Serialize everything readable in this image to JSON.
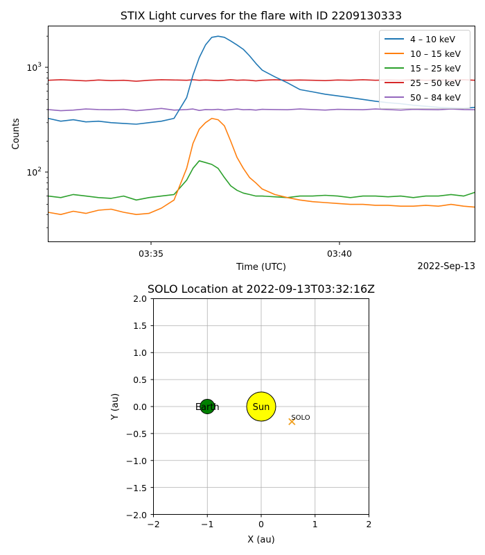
{
  "chart_data": [
    {
      "type": "line",
      "title": "STIX Light curves for the flare with ID 2209130333",
      "xlabel": "Time (UTC)",
      "ylabel": "Counts",
      "date_label": "2022-Sep-13",
      "yscale": "log",
      "ylim": [
        22,
        2500
      ],
      "xlim": [
        "03:32:16",
        "03:43:34"
      ],
      "x_ticks": [
        "03:35",
        "03:40"
      ],
      "y_ticks": [
        "10^2",
        "10^3"
      ],
      "legend_position": "top-right",
      "grid": false,
      "x": [
        "03:32:16",
        "03:32:36",
        "03:32:56",
        "03:33:16",
        "03:33:36",
        "03:33:56",
        "03:34:16",
        "03:34:36",
        "03:34:56",
        "03:35:16",
        "03:35:36",
        "03:35:56",
        "03:36:06",
        "03:36:16",
        "03:36:26",
        "03:36:36",
        "03:36:46",
        "03:36:56",
        "03:37:06",
        "03:37:16",
        "03:37:26",
        "03:37:36",
        "03:37:46",
        "03:37:56",
        "03:38:16",
        "03:38:36",
        "03:38:56",
        "03:39:16",
        "03:39:36",
        "03:39:56",
        "03:40:16",
        "03:40:36",
        "03:40:56",
        "03:41:16",
        "03:41:36",
        "03:41:56",
        "03:42:16",
        "03:42:36",
        "03:42:56",
        "03:43:16",
        "03:43:34"
      ],
      "series": [
        {
          "name": "4 – 10 keV",
          "color": "#1f77b4",
          "values": [
            330,
            310,
            320,
            305,
            310,
            300,
            295,
            290,
            300,
            310,
            330,
            520,
            850,
            1250,
            1650,
            1950,
            2000,
            1950,
            1800,
            1650,
            1500,
            1300,
            1100,
            950,
            820,
            720,
            620,
            590,
            560,
            540,
            520,
            500,
            480,
            465,
            455,
            440,
            430,
            420,
            415,
            410,
            420
          ]
        },
        {
          "name": "10 – 15 keV",
          "color": "#ff7f0e",
          "values": [
            42,
            40,
            43,
            41,
            44,
            45,
            42,
            40,
            41,
            46,
            55,
            110,
            190,
            260,
            300,
            330,
            320,
            280,
            200,
            140,
            110,
            90,
            80,
            70,
            62,
            58,
            55,
            53,
            52,
            51,
            50,
            50,
            49,
            49,
            48,
            48,
            49,
            48,
            50,
            48,
            47
          ]
        },
        {
          "name": "15 – 25 keV",
          "color": "#2ca02c",
          "values": [
            60,
            58,
            62,
            60,
            58,
            57,
            60,
            55,
            58,
            60,
            62,
            85,
            110,
            130,
            125,
            120,
            110,
            90,
            75,
            68,
            64,
            62,
            60,
            60,
            59,
            58,
            60,
            60,
            61,
            60,
            58,
            60,
            60,
            59,
            60,
            58,
            60,
            60,
            62,
            60,
            65
          ]
        },
        {
          "name": "25 – 50 keV",
          "color": "#d62728",
          "values": [
            760,
            770,
            760,
            750,
            765,
            755,
            760,
            745,
            760,
            770,
            765,
            760,
            770,
            760,
            765,
            760,
            755,
            760,
            770,
            760,
            765,
            760,
            750,
            760,
            770,
            760,
            765,
            760,
            755,
            765,
            760,
            770,
            760,
            765,
            760,
            770,
            760,
            765,
            760,
            770,
            760
          ]
        },
        {
          "name": "50 – 84 keV",
          "color": "#9467bd",
          "values": [
            400,
            390,
            395,
            405,
            400,
            398,
            402,
            390,
            400,
            410,
            395,
            400,
            405,
            392,
            400,
            398,
            402,
            395,
            400,
            405,
            398,
            400,
            395,
            402,
            400,
            398,
            405,
            400,
            395,
            402,
            400,
            398,
            405,
            400,
            395,
            402,
            400,
            398,
            405,
            400,
            398
          ]
        }
      ]
    },
    {
      "type": "scatter",
      "title": "SOLO Location at 2022-09-13T03:32:16Z",
      "xlabel": "X (au)",
      "ylabel": "Y (au)",
      "xlim": [
        -2,
        2
      ],
      "ylim": [
        -2,
        2
      ],
      "x_ticks": [
        "−2",
        "−1",
        "0",
        "1",
        "2"
      ],
      "y_ticks": [
        "2.0",
        "1.5",
        "1.0",
        "0.5",
        "0.0",
        "−0.5",
        "−1.0",
        "−1.5",
        "−2.0"
      ],
      "grid": true,
      "points": [
        {
          "name": "Sun",
          "x": 0,
          "y": 0,
          "color": "#ffff00"
        },
        {
          "name": "Earth",
          "x": -1,
          "y": 0,
          "color": "#008000"
        },
        {
          "name": "SOLO",
          "x": 0.57,
          "y": -0.28,
          "color": "#f0a020"
        }
      ]
    }
  ]
}
